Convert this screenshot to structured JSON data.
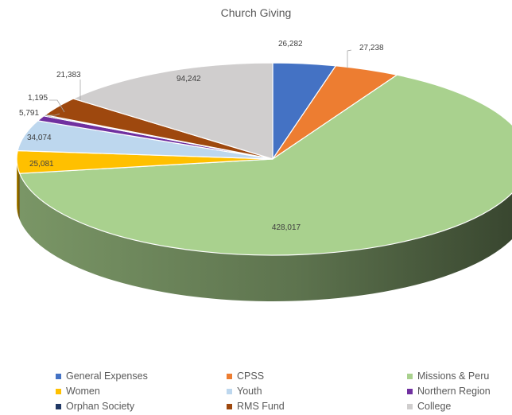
{
  "chart_data": {
    "type": "pie",
    "title": "Church Giving",
    "slices": [
      {
        "label": "General Expenses",
        "value": 26282,
        "value_label": "26,282",
        "color": "#4472c4"
      },
      {
        "label": "CPSS",
        "value": 27238,
        "value_label": "27,238",
        "color": "#ed7d31"
      },
      {
        "label": "Missions & Peru",
        "value": 428017,
        "value_label": "428,017",
        "color": "#a9d18e"
      },
      {
        "label": "Women",
        "value": 25081,
        "value_label": "25,081",
        "color": "#ffc000"
      },
      {
        "label": "Youth",
        "value": 34074,
        "value_label": "34,074",
        "color": "#bdd7ee"
      },
      {
        "label": "Northern Region",
        "value": 5791,
        "value_label": "5,791",
        "color": "#7030a0"
      },
      {
        "label": "Orphan Society",
        "value": 1195,
        "value_label": "1,195",
        "color": "#203864"
      },
      {
        "label": "RMS Fund",
        "value": 21383,
        "value_label": "21,383",
        "color": "#9e480e"
      },
      {
        "label": "College",
        "value": 94242,
        "value_label": "94,242",
        "color": "#d0cece"
      }
    ],
    "legend_position": "bottom",
    "style": "3d-pie"
  }
}
